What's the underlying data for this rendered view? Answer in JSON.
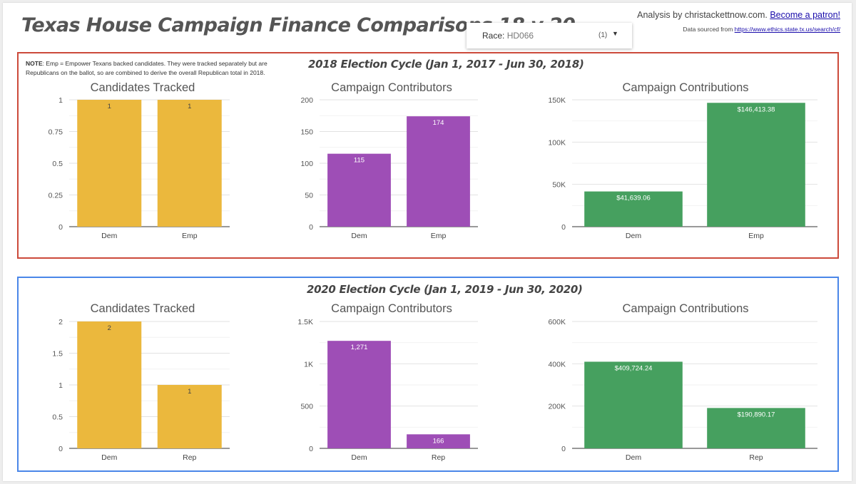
{
  "title": "Texas House Campaign Finance Comparisons 18 v 20",
  "header": {
    "credit_text": "Analysis by christackettnow.com.",
    "patron_link": "Become a patron!",
    "source_prefix": "Data sourced from",
    "source_link": "https://www.ethics.state.tx.us/search/cf/"
  },
  "race_filter": {
    "label": "Race:",
    "value": "HD066",
    "count": "(1)",
    "chevron_icon": "dropdown-arrow-icon"
  },
  "sections": [
    {
      "title": "2018 Election Cycle (Jan 1, 2017 - Jun 30, 2018)",
      "border_color": "#cc4a3b"
    },
    {
      "title": "2020 Election Cycle (Jan 1, 2019 - Jun 30, 2020)",
      "border_color": "#4a86e8"
    }
  ],
  "note": {
    "label": "NOTE",
    "text": ": Emp = Empower Texans backed candidates. They were tracked separately but are Republicans on the ballot, so are combined to derive the overall Republican total in 2018."
  },
  "chart_data": [
    {
      "type": "bar",
      "title": "Candidates Tracked",
      "categories": [
        "Dem",
        "Emp"
      ],
      "values": [
        1,
        1
      ],
      "labels": [
        "1",
        "1"
      ],
      "ylim": [
        0,
        1
      ],
      "ticks": [
        0,
        0.25,
        0.5,
        0.75,
        1
      ],
      "tick_labels": [
        "0",
        "0.25",
        "0.5",
        "0.75",
        "1"
      ],
      "color": "#ebb83d",
      "label_color": "#444444",
      "grid": true
    },
    {
      "type": "bar",
      "title": "Campaign Contributors",
      "categories": [
        "Dem",
        "Emp"
      ],
      "values": [
        115,
        174
      ],
      "labels": [
        "115",
        "174"
      ],
      "ylim": [
        0,
        200
      ],
      "ticks": [
        0,
        50,
        100,
        150,
        200
      ],
      "tick_labels": [
        "0",
        "50",
        "100",
        "150",
        "200"
      ],
      "color": "#9e4eb6",
      "label_color": "#ffffff",
      "grid": true
    },
    {
      "type": "bar",
      "title": "Campaign Contributions",
      "categories": [
        "Dem",
        "Emp"
      ],
      "values": [
        41639.06,
        146413.38
      ],
      "labels": [
        "$41,639.06",
        "$146,413.38"
      ],
      "ylim": [
        0,
        150000
      ],
      "ticks": [
        0,
        50000,
        100000,
        150000
      ],
      "tick_labels": [
        "0",
        "50K",
        "100K",
        "150K"
      ],
      "color": "#46a05f",
      "label_color": "#ffffff",
      "grid": true
    },
    {
      "type": "bar",
      "title": "Candidates Tracked",
      "categories": [
        "Dem",
        "Rep"
      ],
      "values": [
        2,
        1
      ],
      "labels": [
        "2",
        "1"
      ],
      "ylim": [
        0,
        2
      ],
      "ticks": [
        0,
        0.5,
        1,
        1.5,
        2
      ],
      "tick_labels": [
        "0",
        "0.5",
        "1",
        "1.5",
        "2"
      ],
      "color": "#ebb83d",
      "label_color": "#444444",
      "grid": true
    },
    {
      "type": "bar",
      "title": "Campaign Contributors",
      "categories": [
        "Dem",
        "Rep"
      ],
      "values": [
        1271,
        166
      ],
      "labels": [
        "1,271",
        "166"
      ],
      "ylim": [
        0,
        1500
      ],
      "ticks": [
        0,
        500,
        1000,
        1500
      ],
      "tick_labels": [
        "0",
        "500",
        "1K",
        "1.5K"
      ],
      "color": "#9e4eb6",
      "label_color": "#ffffff",
      "grid": true
    },
    {
      "type": "bar",
      "title": "Campaign Contributions",
      "categories": [
        "Dem",
        "Rep"
      ],
      "values": [
        409724.24,
        190890.17
      ],
      "labels": [
        "$409,724.24",
        "$190,890.17"
      ],
      "ylim": [
        0,
        600000
      ],
      "ticks": [
        0,
        200000,
        400000,
        600000
      ],
      "tick_labels": [
        "0",
        "200K",
        "400K",
        "600K"
      ],
      "color": "#46a05f",
      "label_color": "#ffffff",
      "grid": true
    }
  ]
}
